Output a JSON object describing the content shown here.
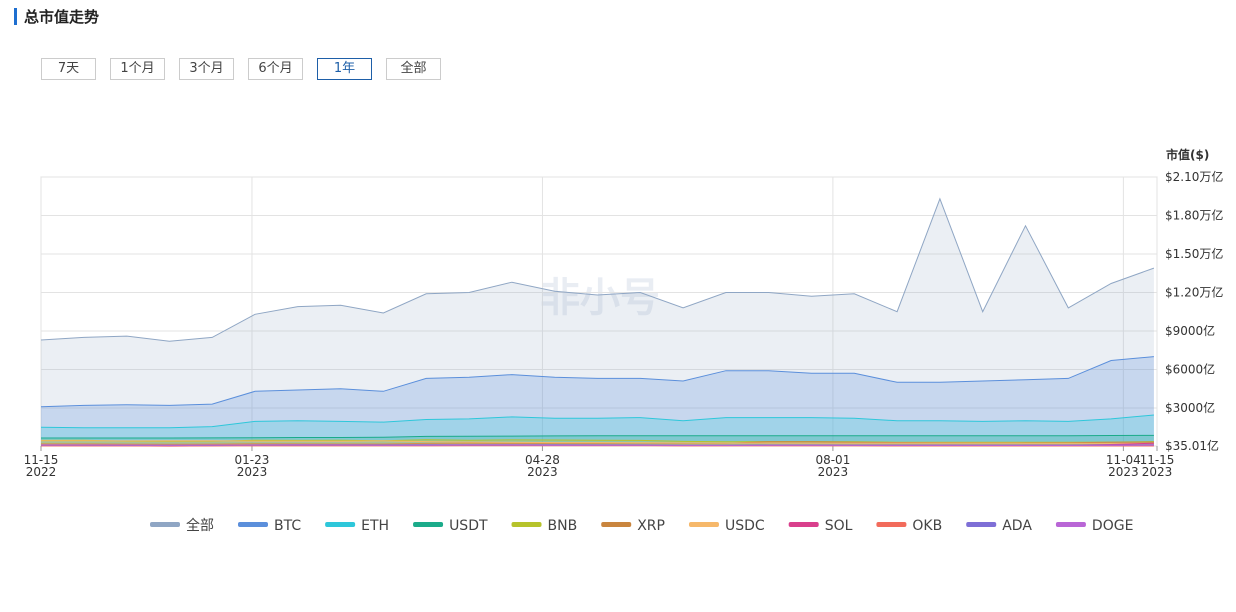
{
  "header": {
    "title": "总市值走势",
    "range_buttons": [
      "7天",
      "1个月",
      "3个月",
      "6个月",
      "1年",
      "全部"
    ],
    "selected": "1年"
  },
  "chart_data": {
    "type": "area",
    "y_label": "市值($)",
    "watermark": "非小号",
    "grid": true,
    "x": [
      "2022-11-15",
      "2022-11-29",
      "2022-12-13",
      "2022-12-27",
      "2023-01-10",
      "2023-01-24",
      "2023-02-07",
      "2023-02-21",
      "2023-03-07",
      "2023-03-21",
      "2023-04-04",
      "2023-04-18",
      "2023-05-02",
      "2023-05-16",
      "2023-05-30",
      "2023-06-13",
      "2023-06-27",
      "2023-07-11",
      "2023-07-25",
      "2023-08-08",
      "2023-08-22",
      "2023-09-05",
      "2023-09-19",
      "2023-10-03",
      "2023-10-17",
      "2023-10-31",
      "2023-11-14"
    ],
    "xlim": [
      "2022-11-15",
      "2023-11-15"
    ],
    "xticks": [
      {
        "value": "2022-11-15",
        "label": [
          "11-15",
          "2022"
        ]
      },
      {
        "value": "2023-01-23",
        "label": [
          "01-23",
          "2023"
        ]
      },
      {
        "value": "2023-04-28",
        "label": [
          "04-28",
          "2023"
        ]
      },
      {
        "value": "2023-08-01",
        "label": [
          "08-01",
          "2023"
        ]
      },
      {
        "value": "2023-11-04",
        "label": [
          "11-04",
          "2023"
        ]
      },
      {
        "value": "2023-11-15",
        "label": [
          "11-15",
          "2023"
        ]
      }
    ],
    "ylim": [
      35.01,
      21000
    ],
    "yticks": [
      {
        "value": 35.01,
        "label": "$35.01亿"
      },
      {
        "value": 3000,
        "label": "$3000亿"
      },
      {
        "value": 6000,
        "label": "$6000亿"
      },
      {
        "value": 9000,
        "label": "$9000亿"
      },
      {
        "value": 12000,
        "label": "$1.20万亿"
      },
      {
        "value": 15000,
        "label": "$1.50万亿"
      },
      {
        "value": 18000,
        "label": "$1.80万亿"
      },
      {
        "value": 21000,
        "label": "$2.10万亿"
      }
    ],
    "series": [
      {
        "name": "全部",
        "color": "#8fa6c4",
        "values": [
          8300,
          8500,
          8600,
          8200,
          8500,
          10300,
          10900,
          11000,
          10400,
          11900,
          12000,
          12800,
          12100,
          11800,
          12000,
          10800,
          12000,
          12000,
          11700,
          11900,
          10500,
          19300,
          10500,
          17200,
          10800,
          12700,
          13900
        ]
      },
      {
        "name": "BTC",
        "color": "#5b8fdb",
        "values": [
          3100,
          3200,
          3250,
          3200,
          3300,
          4300,
          4400,
          4500,
          4300,
          5300,
          5400,
          5600,
          5400,
          5300,
          5300,
          5100,
          5900,
          5900,
          5700,
          5700,
          5000,
          5000,
          5100,
          5200,
          5300,
          6700,
          7000
        ]
      },
      {
        "name": "ETH",
        "color": "#2ec7da",
        "values": [
          1500,
          1450,
          1450,
          1450,
          1550,
          1950,
          2000,
          1950,
          1900,
          2100,
          2150,
          2300,
          2200,
          2200,
          2250,
          2000,
          2250,
          2250,
          2250,
          2200,
          2000,
          2000,
          1950,
          2000,
          1950,
          2150,
          2450
        ]
      },
      {
        "name": "USDT",
        "color": "#1bab8a",
        "values": [
          660,
          660,
          660,
          660,
          670,
          680,
          700,
          700,
          720,
          780,
          800,
          810,
          820,
          830,
          830,
          830,
          830,
          830,
          830,
          830,
          830,
          830,
          830,
          840,
          840,
          850,
          860
        ]
      },
      {
        "name": "BNB",
        "color": "#b6c32b",
        "values": [
          470,
          480,
          410,
          390,
          400,
          480,
          470,
          480,
          440,
          520,
          490,
          510,
          500,
          480,
          470,
          390,
          370,
          380,
          380,
          370,
          330,
          330,
          330,
          320,
          320,
          340,
          380
        ]
      },
      {
        "name": "XRP",
        "color": "#c9853e",
        "values": [
          200,
          200,
          180,
          170,
          180,
          210,
          200,
          190,
          190,
          240,
          260,
          240,
          240,
          240,
          260,
          250,
          250,
          370,
          360,
          330,
          310,
          290,
          280,
          280,
          290,
          330,
          340
        ]
      },
      {
        "name": "USDC",
        "color": "#f6b86a",
        "values": [
          450,
          440,
          430,
          440,
          440,
          420,
          420,
          410,
          430,
          380,
          350,
          320,
          300,
          300,
          290,
          280,
          270,
          270,
          260,
          260,
          260,
          260,
          260,
          250,
          250,
          240,
          250
        ]
      },
      {
        "name": "SOL",
        "color": "#d93f8c",
        "values": [
          50,
          40,
          40,
          30,
          40,
          90,
          100,
          90,
          80,
          80,
          80,
          80,
          80,
          80,
          80,
          60,
          70,
          90,
          100,
          100,
          90,
          90,
          80,
          90,
          90,
          150,
          250
        ]
      },
      {
        "name": "OKB",
        "color": "#f26b5b",
        "values": [
          40,
          40,
          40,
          40,
          40,
          45,
          45,
          45,
          40,
          45,
          50,
          50,
          50,
          50,
          50,
          45,
          45,
          45,
          45,
          40,
          35,
          35,
          35,
          35,
          35,
          35,
          36
        ]
      },
      {
        "name": "ADA",
        "color": "#7e6fd6",
        "values": [
          110,
          110,
          90,
          90,
          100,
          120,
          130,
          130,
          120,
          130,
          140,
          140,
          130,
          120,
          120,
          90,
          100,
          110,
          110,
          100,
          90,
          90,
          90,
          90,
          90,
          110,
          130
        ]
      },
      {
        "name": "DOGE",
        "color": "#b966d6",
        "values": [
          120,
          120,
          110,
          100,
          110,
          110,
          120,
          110,
          100,
          100,
          120,
          120,
          100,
          100,
          100,
          80,
          80,
          90,
          100,
          90,
          80,
          90,
          80,
          80,
          80,
          90,
          110
        ]
      }
    ]
  }
}
